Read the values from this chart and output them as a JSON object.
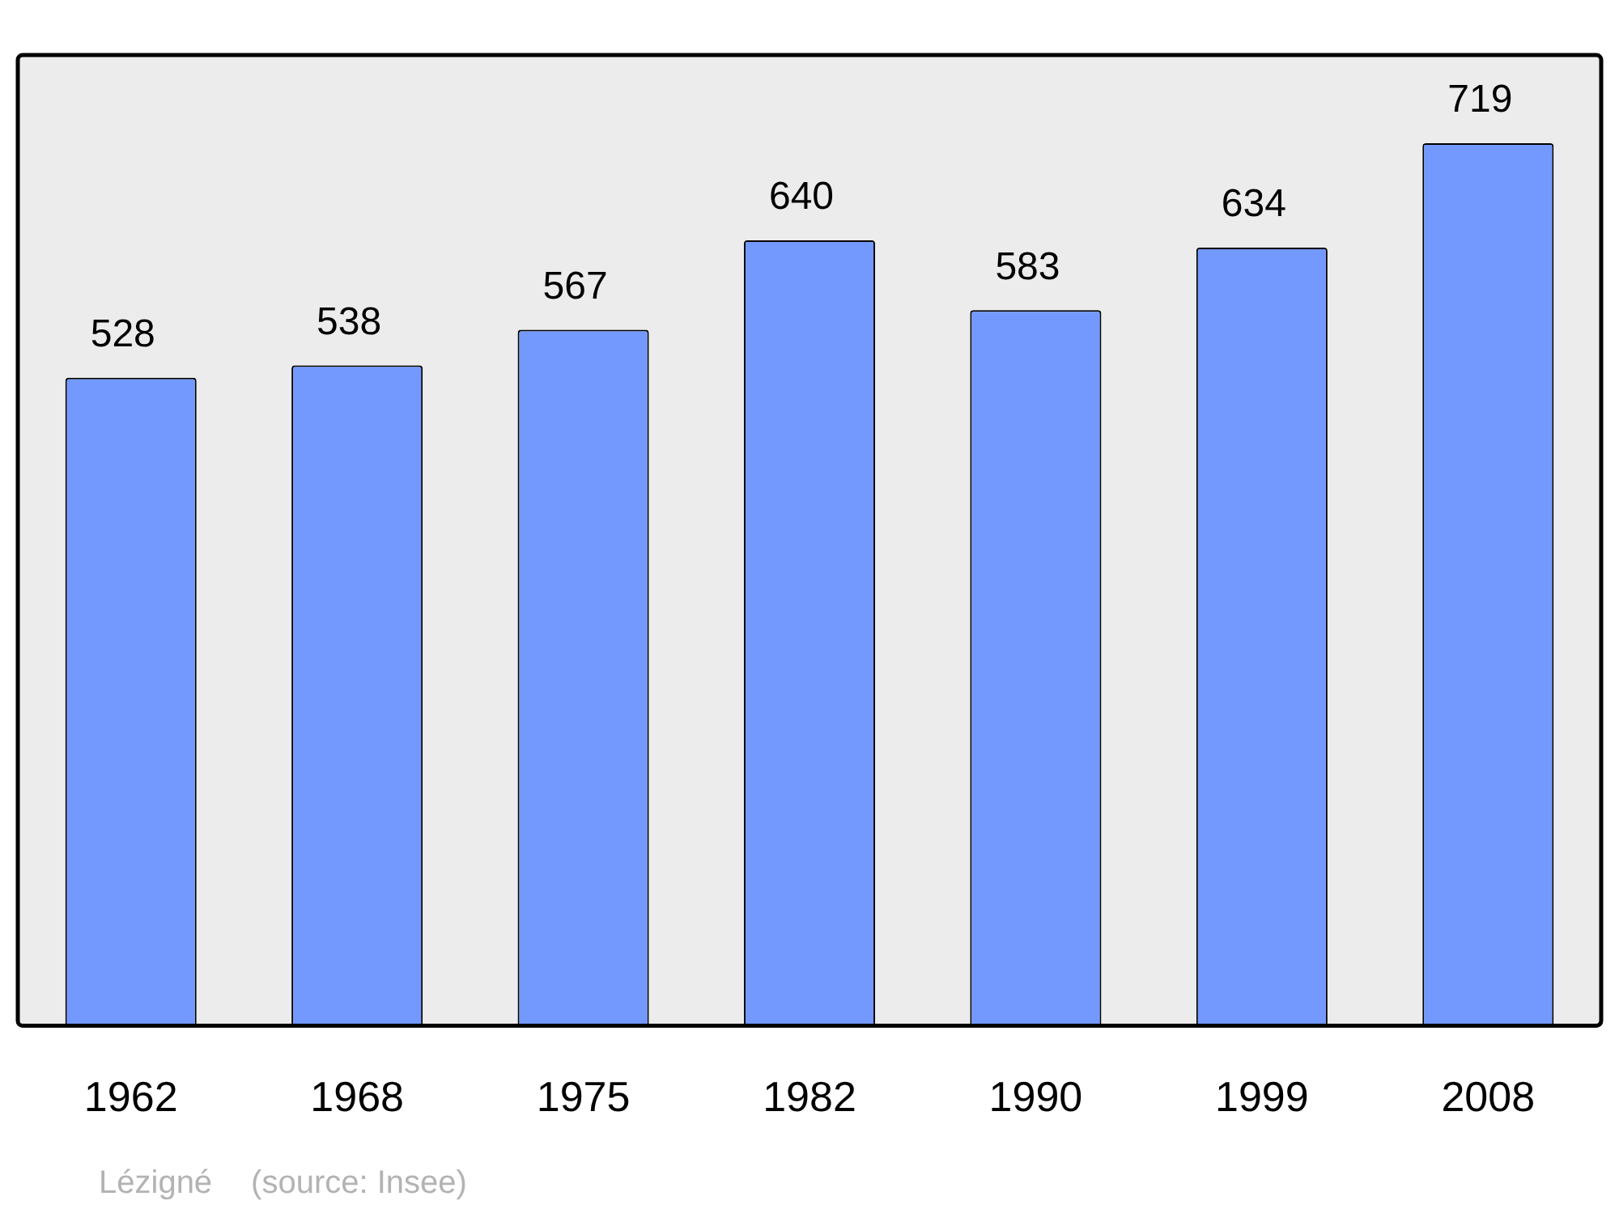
{
  "chart_data": {
    "type": "bar",
    "categories": [
      "1962",
      "1968",
      "1975",
      "1982",
      "1990",
      "1999",
      "2008"
    ],
    "values": [
      528,
      538,
      567,
      640,
      583,
      634,
      719
    ],
    "color": "#7399ff",
    "data_labels": true,
    "grid": false,
    "legend": false,
    "annotations": [
      "Lézigné",
      "(source: Insee)"
    ]
  }
}
